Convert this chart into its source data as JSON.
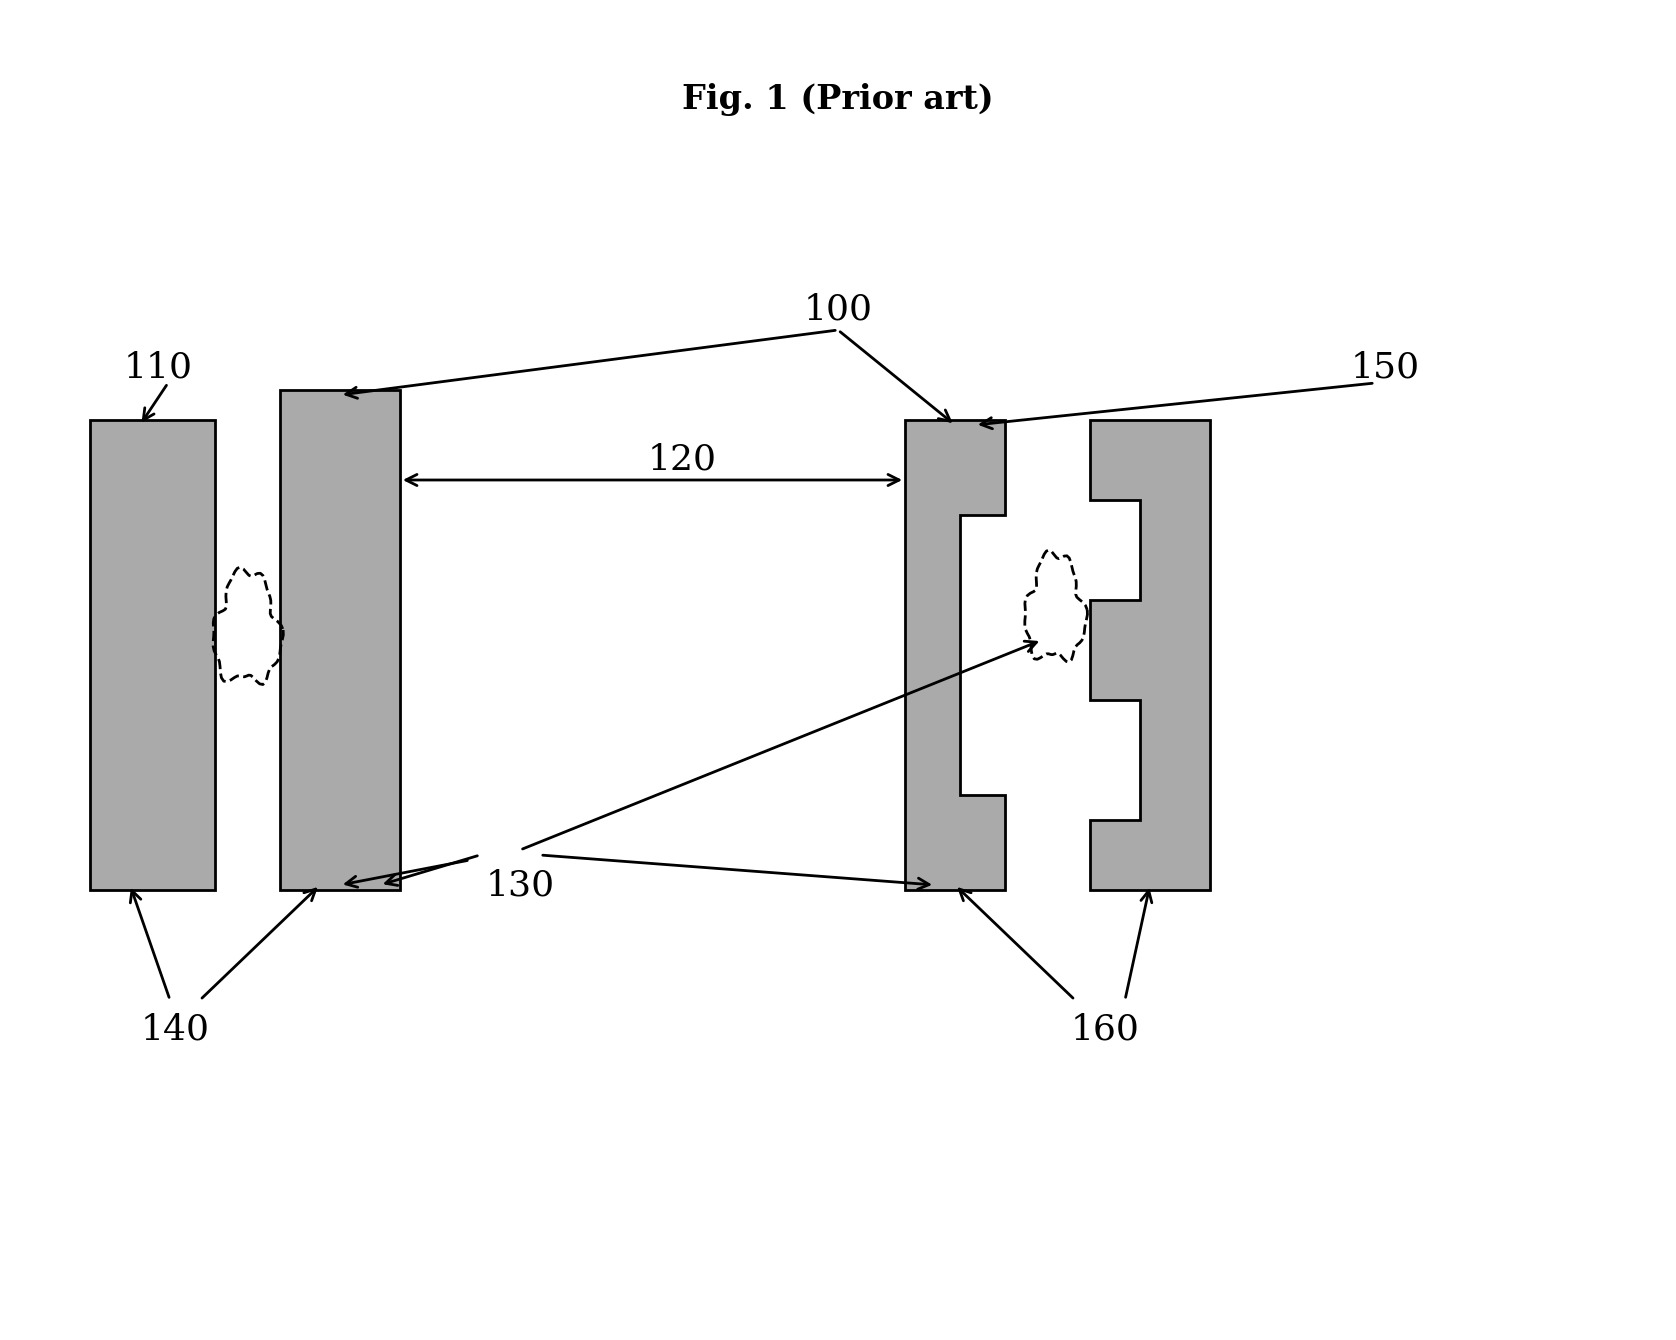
{
  "title": "Fig. 1 (Prior art)",
  "title_fontsize": 24,
  "bg_color": "#ffffff",
  "gray_color": "#aaaaaa",
  "label_100": "100",
  "label_110": "110",
  "label_120": "120",
  "label_130": "130",
  "label_140": "140",
  "label_150": "150",
  "label_160": "160",
  "label_fontsize": 26
}
